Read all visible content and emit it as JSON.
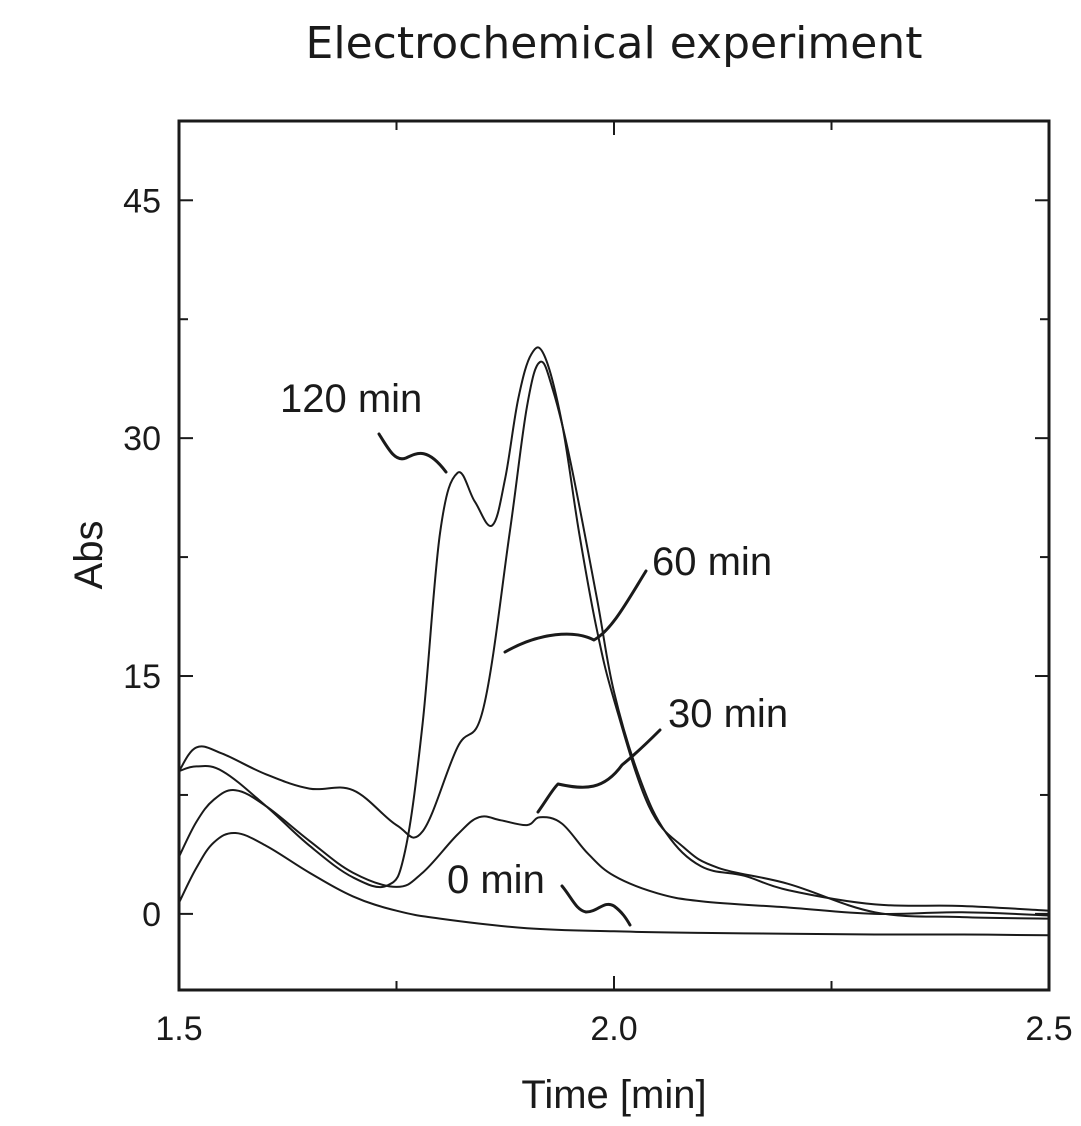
{
  "chart_data": {
    "type": "line",
    "title": "Electrochemical experiment",
    "xlabel": "Time [min]",
    "ylabel": "Abs",
    "xlim": [
      1.5,
      2.5
    ],
    "ylim": [
      -4.8,
      50
    ],
    "x_ticks": [
      1.5,
      2.0,
      2.5
    ],
    "x_tick_labels": [
      "1.5",
      "2.0",
      "2.5"
    ],
    "x_minor_ticks": [
      1.75,
      2.25
    ],
    "y_ticks": [
      0,
      15,
      30,
      45
    ],
    "y_tick_labels": [
      "0",
      "15",
      "30",
      "45"
    ],
    "y_minor_ticks": [
      7.5,
      22.5,
      37.5
    ],
    "grid": false,
    "legend": "none",
    "series": [
      {
        "name": "0 min",
        "x": [
          1.5,
          1.52,
          1.54,
          1.565,
          1.6,
          1.65,
          1.7,
          1.75,
          1.8,
          1.9,
          2.0,
          2.1,
          2.2,
          2.3,
          2.4,
          2.5
        ],
        "y": [
          0.7,
          2.9,
          4.5,
          5.1,
          4.3,
          2.6,
          1.1,
          0.2,
          -0.3,
          -0.9,
          -1.1,
          -1.2,
          -1.25,
          -1.3,
          -1.3,
          -1.35
        ]
      },
      {
        "name": "30 min",
        "x": [
          1.5,
          1.52,
          1.54,
          1.565,
          1.6,
          1.65,
          1.7,
          1.75,
          1.78,
          1.82,
          1.845,
          1.87,
          1.9,
          1.915,
          1.94,
          1.97,
          2.0,
          2.05,
          2.1,
          2.2,
          2.3,
          2.4,
          2.5
        ],
        "y": [
          3.6,
          5.8,
          7.2,
          7.8,
          6.8,
          4.6,
          2.6,
          1.7,
          2.6,
          5.0,
          6.1,
          5.9,
          5.6,
          6.1,
          5.7,
          3.8,
          2.4,
          1.3,
          0.8,
          0.4,
          0.0,
          0.1,
          -0.1
        ]
      },
      {
        "name": "60 min",
        "x": [
          1.5,
          1.52,
          1.55,
          1.6,
          1.65,
          1.7,
          1.75,
          1.78,
          1.82,
          1.85,
          1.88,
          1.9,
          1.915,
          1.93,
          1.95,
          1.98,
          2.0,
          2.03,
          2.06,
          2.1,
          2.15,
          2.2,
          2.3,
          2.4,
          2.5
        ],
        "y": [
          9.0,
          10.5,
          10.1,
          8.8,
          7.9,
          7.8,
          5.6,
          5.2,
          10.5,
          13.0,
          24.0,
          32.0,
          34.8,
          33.0,
          28.5,
          20.0,
          14.0,
          8.5,
          5.1,
          3.0,
          2.4,
          1.5,
          0.6,
          0.5,
          0.2
        ]
      },
      {
        "name": "120 min",
        "x": [
          1.5,
          1.52,
          1.55,
          1.6,
          1.65,
          1.7,
          1.74,
          1.76,
          1.78,
          1.8,
          1.82,
          1.84,
          1.86,
          1.875,
          1.89,
          1.905,
          1.92,
          1.94,
          1.96,
          1.98,
          2.0,
          2.04,
          2.08,
          2.12,
          2.2,
          2.3,
          2.4,
          2.5
        ],
        "y": [
          9.0,
          9.3,
          9.0,
          6.8,
          4.3,
          2.3,
          1.8,
          4.0,
          12.0,
          24.0,
          27.8,
          26.0,
          24.5,
          27.5,
          32.5,
          35.3,
          35.2,
          31.0,
          24.0,
          18.0,
          13.5,
          6.8,
          4.2,
          2.9,
          1.9,
          0.1,
          -0.2,
          -0.3
        ]
      }
    ],
    "annotations": [
      {
        "text": "120 min",
        "series": "120 min"
      },
      {
        "text": "60 min",
        "series": "60 min"
      },
      {
        "text": "30 min",
        "series": "30 min"
      },
      {
        "text": "0 min",
        "series": "0 min"
      }
    ]
  }
}
